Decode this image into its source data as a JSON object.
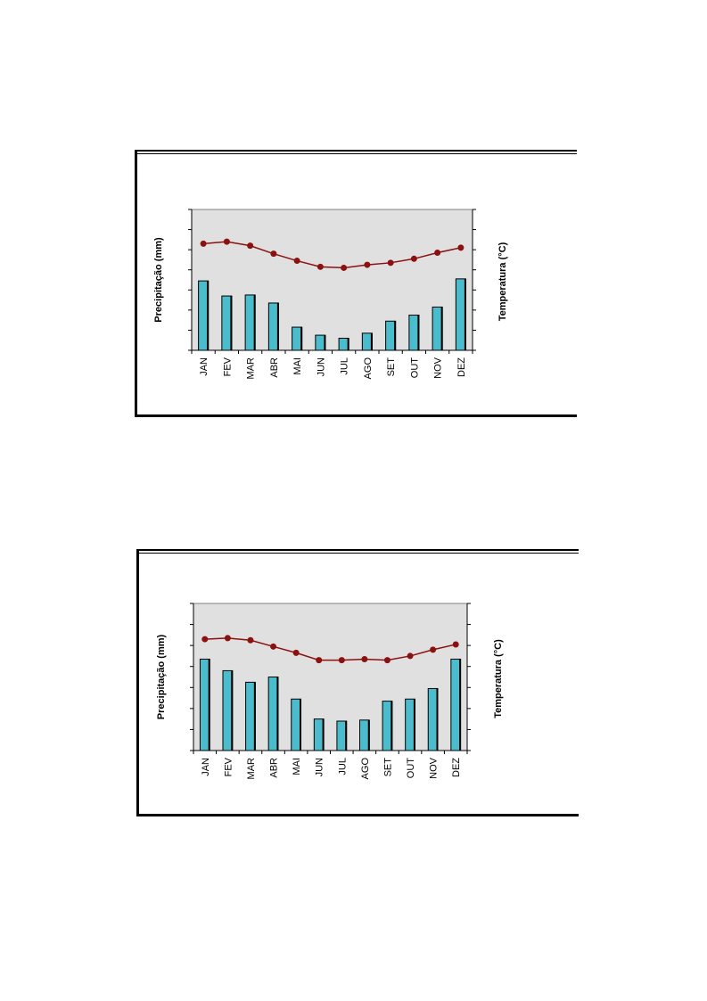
{
  "chart_data": [
    {
      "type": "bar",
      "categories": [
        "JAN",
        "FEV",
        "MAR",
        "ABR",
        "MAI",
        "JUN",
        "JUL",
        "AGO",
        "SET",
        "OUT",
        "NOV",
        "DEZ"
      ],
      "series": [
        {
          "type": "bar",
          "axis": "left",
          "values": [
            3.45,
            2.7,
            2.75,
            2.35,
            1.15,
            0.75,
            0.6,
            0.85,
            1.45,
            1.75,
            2.15,
            3.55
          ]
        },
        {
          "type": "line",
          "axis": "right",
          "values": [
            5.3,
            5.4,
            5.2,
            4.8,
            4.45,
            4.15,
            4.1,
            4.25,
            4.35,
            4.55,
            4.85,
            5.1
          ]
        }
      ],
      "ylabel": "Precipitação (mm)",
      "y2label": "Temperatura (°C)",
      "ylim": [
        0,
        7
      ],
      "y2lim": [
        0,
        7
      ],
      "colors": {
        "bar": "#4bbccc",
        "line": "#8b1010",
        "plot_bg": "#e0e0e0"
      }
    },
    {
      "type": "bar",
      "categories": [
        "JAN",
        "FEV",
        "MAR",
        "ABR",
        "MAI",
        "JUN",
        "JUL",
        "AGO",
        "SET",
        "OUT",
        "NOV",
        "DEZ"
      ],
      "series": [
        {
          "type": "bar",
          "axis": "left",
          "values": [
            4.35,
            3.8,
            3.25,
            3.5,
            2.45,
            1.5,
            1.4,
            1.45,
            2.35,
            2.45,
            2.95,
            4.35
          ]
        },
        {
          "type": "line",
          "axis": "right",
          "values": [
            5.3,
            5.35,
            5.25,
            4.95,
            4.65,
            4.3,
            4.3,
            4.35,
            4.3,
            4.5,
            4.8,
            5.05
          ]
        }
      ],
      "ylabel": "Precipitação (mm)",
      "y2label": "Temperatura (°C)",
      "ylim": [
        0,
        7
      ],
      "y2lim": [
        0,
        7
      ],
      "colors": {
        "bar": "#4bbccc",
        "line": "#8b1010",
        "plot_bg": "#e0e0e0"
      }
    }
  ]
}
